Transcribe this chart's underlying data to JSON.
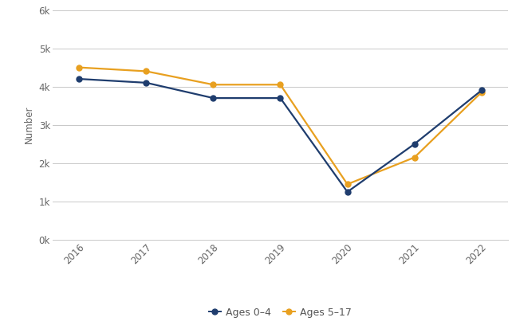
{
  "years": [
    2016,
    2017,
    2018,
    2019,
    2020,
    2021,
    2022
  ],
  "ages_0_4": [
    4200,
    4100,
    3700,
    3700,
    1250,
    2500,
    3900
  ],
  "ages_5_17": [
    4500,
    4400,
    4050,
    4050,
    1450,
    2150,
    3850
  ],
  "line_color_0_4": "#1f3d6e",
  "line_color_5_17": "#e8a020",
  "ylabel": "Number",
  "ylim": [
    0,
    6000
  ],
  "yticks": [
    0,
    1000,
    2000,
    3000,
    4000,
    5000,
    6000
  ],
  "ytick_labels": [
    "0k",
    "1k",
    "2k",
    "3k",
    "4k",
    "5k",
    "6k"
  ],
  "legend_labels": [
    "Ages 0–4",
    "Ages 5–17"
  ],
  "background_color": "#ffffff",
  "grid_color": "#c8c8c8",
  "marker_size": 5,
  "line_width": 1.6
}
